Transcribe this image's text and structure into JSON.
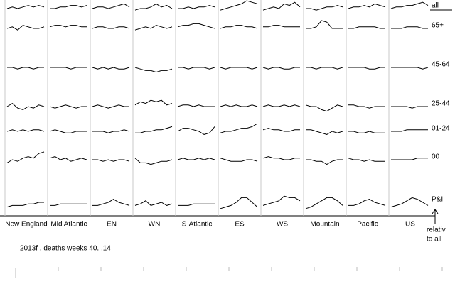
{
  "chart_data": {
    "type": "sparkline-grid",
    "caption": "2013f , deaths weeks 40...14",
    "note_lines": [
      "relativ",
      "to all"
    ],
    "columns": [
      "New England",
      "Mid Atlantic",
      "EN",
      "WN",
      "S-Atlantic",
      "ES",
      "WS",
      "Mountain",
      "Pacific",
      "US"
    ],
    "ylim": [
      0,
      10
    ],
    "color": "#000000",
    "series": [
      {
        "name": "all",
        "values": [
          [
            5,
            6,
            5,
            6,
            7,
            6,
            7,
            6
          ],
          [
            5,
            5,
            6,
            6,
            7,
            7,
            6,
            7
          ],
          [
            5,
            6,
            6,
            5,
            6,
            7,
            8,
            6
          ],
          [
            4,
            5,
            5,
            6,
            8,
            6,
            7,
            5
          ],
          [
            5,
            5,
            6,
            5,
            6,
            6,
            7,
            6
          ],
          [
            4,
            5,
            6,
            7,
            8,
            10,
            9,
            8
          ],
          [
            4,
            5,
            6,
            5,
            8,
            7,
            9,
            6
          ],
          [
            5,
            5,
            4,
            5,
            6,
            6,
            7,
            6
          ],
          [
            5,
            6,
            6,
            7,
            6,
            8,
            7,
            6
          ],
          [
            5,
            6,
            6,
            7,
            7,
            8,
            9,
            7
          ]
        ]
      },
      {
        "name": "65+",
        "values": [
          [
            5,
            6,
            4,
            7,
            6,
            5,
            5,
            6
          ],
          [
            6,
            7,
            7,
            6,
            7,
            7,
            6,
            6
          ],
          [
            5,
            6,
            6,
            5,
            5,
            6,
            6,
            5
          ],
          [
            4,
            5,
            6,
            5,
            7,
            6,
            5,
            6
          ],
          [
            6,
            7,
            7,
            8,
            8,
            7,
            6,
            5
          ],
          [
            5,
            6,
            6,
            7,
            7,
            6,
            6,
            5
          ],
          [
            6,
            6,
            7,
            7,
            6,
            6,
            6,
            6
          ],
          [
            5,
            5,
            6,
            10,
            9,
            5,
            5,
            5
          ],
          [
            5,
            5,
            6,
            6,
            6,
            6,
            5,
            5
          ],
          [
            5,
            5,
            5,
            6,
            6,
            6,
            5,
            5
          ]
        ]
      },
      {
        "name": "45-64",
        "values": [
          [
            5,
            5,
            4,
            5,
            5,
            4,
            5,
            5
          ],
          [
            5,
            5,
            5,
            5,
            4,
            5,
            5,
            5
          ],
          [
            5,
            4,
            5,
            4,
            5,
            4,
            4,
            5
          ],
          [
            5,
            4,
            3,
            3,
            2,
            3,
            3,
            4
          ],
          [
            5,
            5,
            4,
            5,
            5,
            5,
            4,
            5
          ],
          [
            5,
            4,
            5,
            5,
            5,
            5,
            4,
            5
          ],
          [
            5,
            4,
            5,
            5,
            4,
            4,
            5,
            5
          ],
          [
            5,
            5,
            4,
            5,
            5,
            5,
            4,
            5
          ],
          [
            5,
            5,
            5,
            5,
            4,
            4,
            5,
            5
          ],
          [
            5,
            5,
            5,
            5,
            5,
            5,
            4,
            5
          ]
        ]
      },
      {
        "name": "25-44",
        "values": [
          [
            5,
            7,
            4,
            3,
            5,
            4,
            6,
            5
          ],
          [
            5,
            4,
            5,
            6,
            5,
            4,
            5,
            5
          ],
          [
            5,
            6,
            5,
            4,
            5,
            6,
            5,
            5
          ],
          [
            6,
            8,
            7,
            9,
            8,
            9,
            6,
            7
          ],
          [
            5,
            6,
            6,
            5,
            6,
            5,
            5,
            5
          ],
          [
            5,
            6,
            5,
            6,
            5,
            5,
            6,
            5
          ],
          [
            5,
            6,
            5,
            5,
            6,
            5,
            6,
            5
          ],
          [
            6,
            5,
            5,
            3,
            2,
            4,
            6,
            5
          ],
          [
            6,
            6,
            5,
            5,
            4,
            5,
            5,
            5
          ],
          [
            5,
            5,
            5,
            5,
            4,
            5,
            5,
            5
          ]
        ]
      },
      {
        "name": "01-24",
        "values": [
          [
            5,
            6,
            5,
            6,
            5,
            6,
            6,
            5
          ],
          [
            5,
            6,
            5,
            4,
            4,
            5,
            5,
            5
          ],
          [
            5,
            5,
            5,
            4,
            5,
            5,
            6,
            5
          ],
          [
            4,
            4,
            5,
            5,
            6,
            6,
            7,
            8
          ],
          [
            5,
            7,
            7,
            6,
            5,
            3,
            4,
            8
          ],
          [
            4,
            5,
            5,
            6,
            7,
            7,
            8,
            10
          ],
          [
            6,
            7,
            6,
            6,
            5,
            5,
            6,
            6
          ],
          [
            6,
            6,
            5,
            4,
            3,
            5,
            4,
            5
          ],
          [
            5,
            5,
            4,
            4,
            5,
            4,
            4,
            4
          ],
          [
            5,
            5,
            5,
            6,
            6,
            6,
            6,
            6
          ]
        ]
      },
      {
        "name": "00",
        "values": [
          [
            3,
            5,
            4,
            6,
            7,
            6,
            9,
            10
          ],
          [
            6,
            7,
            5,
            6,
            4,
            5,
            6,
            5
          ],
          [
            5,
            5,
            4,
            5,
            4,
            5,
            5,
            4
          ],
          [
            6,
            3,
            3,
            2,
            3,
            4,
            4,
            5
          ],
          [
            5,
            6,
            5,
            5,
            6,
            5,
            6,
            5
          ],
          [
            6,
            5,
            4,
            4,
            4,
            5,
            5,
            4
          ],
          [
            6,
            7,
            6,
            6,
            5,
            5,
            6,
            6
          ],
          [
            5,
            5,
            4,
            4,
            2,
            4,
            5,
            5
          ],
          [
            6,
            5,
            5,
            4,
            5,
            4,
            4,
            4
          ],
          [
            5,
            5,
            5,
            5,
            5,
            6,
            6,
            6
          ]
        ]
      },
      {
        "name": "P&I",
        "values": [
          [
            2,
            3,
            3,
            3,
            4,
            4,
            5,
            5
          ],
          [
            3,
            3,
            4,
            4,
            4,
            4,
            4,
            4
          ],
          [
            3,
            3,
            4,
            5,
            7,
            5,
            4,
            3
          ],
          [
            3,
            4,
            6,
            3,
            4,
            5,
            3,
            4
          ],
          [
            3,
            3,
            3,
            4,
            4,
            4,
            4,
            4
          ],
          [
            1,
            2,
            3,
            5,
            8,
            8,
            5,
            2
          ],
          [
            3,
            4,
            5,
            6,
            9,
            8,
            8,
            6
          ],
          [
            1,
            2,
            4,
            6,
            8,
            8,
            6,
            3
          ],
          [
            3,
            3,
            4,
            6,
            7,
            5,
            4,
            3
          ],
          [
            2,
            3,
            4,
            6,
            8,
            7,
            5,
            3
          ]
        ]
      }
    ]
  }
}
